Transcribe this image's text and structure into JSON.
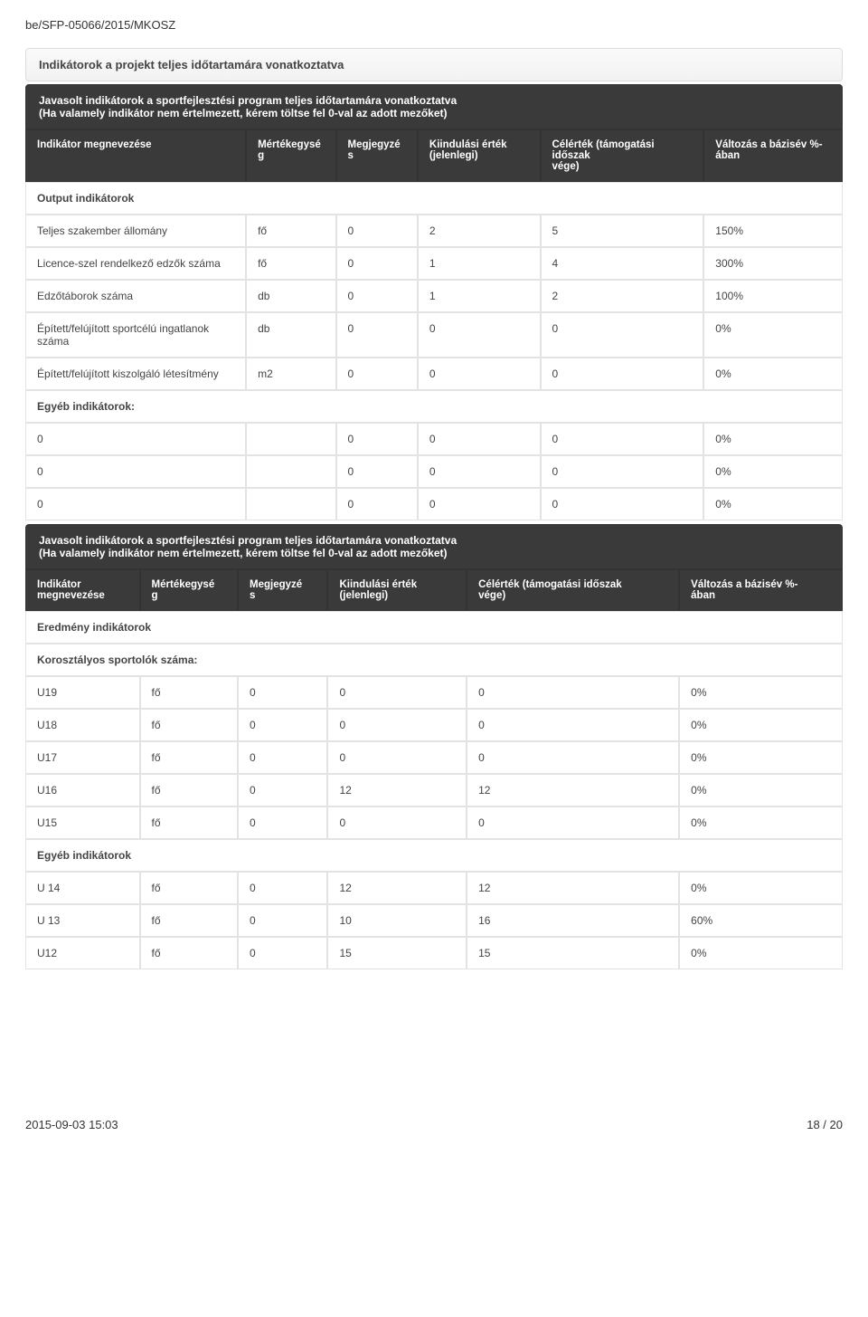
{
  "document": {
    "reference": "be/SFP-05066/2015/MKOSZ",
    "footer_left": "2015-09-03 15:03",
    "footer_right": "18 / 20"
  },
  "panel": {
    "title": "Indikátorok a projekt teljes időtartamára vonatkoztatva"
  },
  "block1": {
    "header_line1": "Javasolt indikátorok a sportfejlesztési program teljes időtartamára vonatkoztatva",
    "header_line2": "(Ha valamely indikátor nem értelmezett, kérem töltse fel 0-val az adott mezőket)",
    "columns": {
      "c0": "Indikátor megnevezése",
      "c1_l1": "Mértékegysé",
      "c1_l2": "g",
      "c2_l1": "Megjegyzé",
      "c2_l2": "s",
      "c3_l1": "Kiindulási érték",
      "c3_l2": "(jelenlegi)",
      "c4_l1": "Célérték (támogatási időszak",
      "c4_l2": "vége)",
      "c5_l1": "Változás a bázisév %-",
      "c5_l2": "ában"
    },
    "section_output": "Output indikátorok",
    "rows_output": [
      {
        "name": "Teljes szakember állomány",
        "unit": "fő",
        "note": "0",
        "start": "2",
        "target": "5",
        "change": "150%"
      },
      {
        "name": "Licence-szel rendelkező edzők száma",
        "unit": "fő",
        "note": "0",
        "start": "1",
        "target": "4",
        "change": "300%"
      },
      {
        "name": "Edzőtáborok száma",
        "unit": "db",
        "note": "0",
        "start": "1",
        "target": "2",
        "change": "100%"
      },
      {
        "name": "Épített/felújított sportcélú ingatlanok száma",
        "unit": "db",
        "note": "0",
        "start": "0",
        "target": "0",
        "change": "0%"
      },
      {
        "name": "Épített/felújított kiszolgáló létesítmény",
        "unit": "m2",
        "note": "0",
        "start": "0",
        "target": "0",
        "change": "0%"
      }
    ],
    "section_other": "Egyéb indikátorok:",
    "rows_other": [
      {
        "name": "0",
        "unit": "",
        "note": "0",
        "start": "0",
        "target": "0",
        "change": "0%"
      },
      {
        "name": "0",
        "unit": "",
        "note": "0",
        "start": "0",
        "target": "0",
        "change": "0%"
      },
      {
        "name": "0",
        "unit": "",
        "note": "0",
        "start": "0",
        "target": "0",
        "change": "0%"
      }
    ]
  },
  "block2": {
    "header_line1": "Javasolt indikátorok a sportfejlesztési program teljes időtartamára vonatkoztatva",
    "header_line2": "(Ha valamely indikátor nem értelmezett, kérem töltse fel 0-val az adott mezőket)",
    "columns": {
      "c0_l1": "Indikátor",
      "c0_l2": "megnevezése",
      "c1_l1": "Mértékegysé",
      "c1_l2": "g",
      "c2_l1": "Megjegyzé",
      "c2_l2": "s",
      "c3_l1": "Kiindulási érték",
      "c3_l2": "(jelenlegi)",
      "c4_l1": "Célérték (támogatási időszak",
      "c4_l2": "vége)",
      "c5_l1": "Változás a bázisév %-",
      "c5_l2": "ában"
    },
    "section_result": "Eredmény indikátorok",
    "section_age": "Korosztályos sportolók száma:",
    "rows_age": [
      {
        "name": "U19",
        "unit": "fő",
        "note": "0",
        "start": "0",
        "target": "0",
        "change": "0%"
      },
      {
        "name": "U18",
        "unit": "fő",
        "note": "0",
        "start": "0",
        "target": "0",
        "change": "0%"
      },
      {
        "name": "U17",
        "unit": "fő",
        "note": "0",
        "start": "0",
        "target": "0",
        "change": "0%"
      },
      {
        "name": "U16",
        "unit": "fő",
        "note": "0",
        "start": "12",
        "target": "12",
        "change": "0%"
      },
      {
        "name": "U15",
        "unit": "fő",
        "note": "0",
        "start": "0",
        "target": "0",
        "change": "0%"
      }
    ],
    "section_other": "Egyéb indikátorok",
    "rows_other": [
      {
        "name": "U 14",
        "unit": "fő",
        "note": "0",
        "start": "12",
        "target": "12",
        "change": "0%"
      },
      {
        "name": "U 13",
        "unit": "fő",
        "note": "0",
        "start": "10",
        "target": "16",
        "change": "60%"
      },
      {
        "name": "U12",
        "unit": "fő",
        "note": "0",
        "start": "15",
        "target": "15",
        "change": "0%"
      }
    ]
  }
}
